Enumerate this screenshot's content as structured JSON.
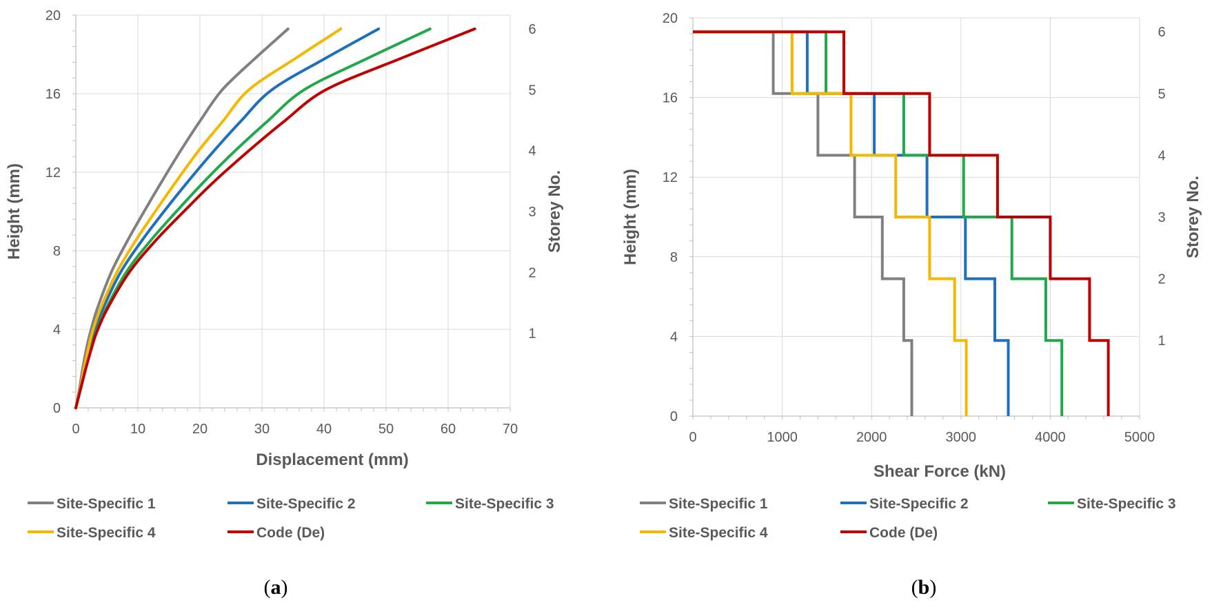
{
  "chart_data": [
    {
      "type": "line",
      "panel": "a",
      "caption_letter": "a",
      "xlabel": "Displacement (mm)",
      "ylabel": "Height (mm)",
      "y2label": "Storey No.",
      "xlim": [
        0,
        70
      ],
      "ylim": [
        0,
        20
      ],
      "xticks": [
        0,
        10,
        20,
        30,
        40,
        50,
        60,
        70
      ],
      "yticks": [
        0,
        4,
        8,
        12,
        16,
        20
      ],
      "y2ticks": [
        {
          "label": "1",
          "height": 3.8
        },
        {
          "label": "2",
          "height": 6.9
        },
        {
          "label": "3",
          "height": 10.0
        },
        {
          "label": "4",
          "height": 13.1
        },
        {
          "label": "5",
          "height": 16.2
        },
        {
          "label": "6",
          "height": 19.3
        }
      ],
      "grid": true,
      "legend_position": "bottom",
      "heights": [
        0,
        1,
        2,
        3,
        3.8,
        5,
        6.9,
        8.5,
        10,
        11.5,
        13.1,
        14.6,
        16.2,
        17.8,
        19.3
      ],
      "series": [
        {
          "name": "Site-Specific 1",
          "color": "#808080",
          "x": [
            0,
            0.6,
            1.1,
            1.7,
            2.3,
            3.4,
            5.7,
            8.3,
            11.0,
            13.8,
            16.9,
            20.0,
            23.6,
            28.9,
            34.2
          ]
        },
        {
          "name": "Site-Specific 2",
          "color": "#1f6fbf",
          "x": [
            0,
            0.7,
            1.4,
            2.2,
            2.9,
            4.3,
            7.2,
            10.6,
            14.2,
            18.0,
            22.3,
            26.6,
            31.6,
            40.2,
            48.8
          ]
        },
        {
          "name": "Site-Specific 3",
          "color": "#22a84a",
          "x": [
            0,
            0.8,
            1.6,
            2.4,
            3.2,
            4.8,
            8.1,
            12.0,
            16.2,
            20.6,
            25.7,
            30.9,
            36.8,
            47.0,
            57.1
          ]
        },
        {
          "name": "Site-Specific 4",
          "color": "#f5b800",
          "x": [
            0,
            0.7,
            1.3,
            2.0,
            2.6,
            3.9,
            6.6,
            9.6,
            12.8,
            16.1,
            19.8,
            23.7,
            27.9,
            35.4,
            42.7
          ]
        },
        {
          "name": "Code (De)",
          "color": "#c00000",
          "x": [
            0,
            0.8,
            1.6,
            2.5,
            3.3,
            5.0,
            8.6,
            12.8,
            17.4,
            22.2,
            27.9,
            33.6,
            40.3,
            52.4,
            64.3
          ]
        }
      ]
    },
    {
      "type": "line",
      "subtype": "step",
      "panel": "b",
      "caption_letter": "b",
      "xlabel": "Shear Force (kN)",
      "ylabel": "Height (mm)",
      "y2label": "Storey No.",
      "xlim": [
        0,
        5000
      ],
      "ylim": [
        0,
        20
      ],
      "xticks": [
        0,
        1000,
        2000,
        3000,
        4000,
        5000
      ],
      "yticks": [
        0,
        4,
        8,
        12,
        16,
        20
      ],
      "y2ticks": [
        {
          "label": "1",
          "height": 3.8
        },
        {
          "label": "2",
          "height": 6.9
        },
        {
          "label": "3",
          "height": 10.0
        },
        {
          "label": "4",
          "height": 13.1
        },
        {
          "label": "5",
          "height": 16.2
        },
        {
          "label": "6",
          "height": 19.3
        }
      ],
      "grid": true,
      "legend_position": "bottom",
      "level_heights": [
        0,
        3.8,
        6.9,
        10.0,
        13.1,
        16.2,
        19.3
      ],
      "series": [
        {
          "name": "Site-Specific 1",
          "color": "#808080",
          "values": [
            2450,
            2360,
            2120,
            1810,
            1400,
            900
          ]
        },
        {
          "name": "Site-Specific 2",
          "color": "#1f6fbf",
          "values": [
            3530,
            3380,
            3050,
            2620,
            2030,
            1280
          ]
        },
        {
          "name": "Site-Specific 3",
          "color": "#22a84a",
          "values": [
            4130,
            3950,
            3570,
            3030,
            2360,
            1490
          ]
        },
        {
          "name": "Site-Specific 4",
          "color": "#f5b800",
          "values": [
            3060,
            2930,
            2650,
            2270,
            1770,
            1110
          ]
        },
        {
          "name": "Code (De)",
          "color": "#c00000",
          "values": [
            4650,
            4440,
            4000,
            3410,
            2650,
            1690
          ]
        }
      ]
    }
  ]
}
